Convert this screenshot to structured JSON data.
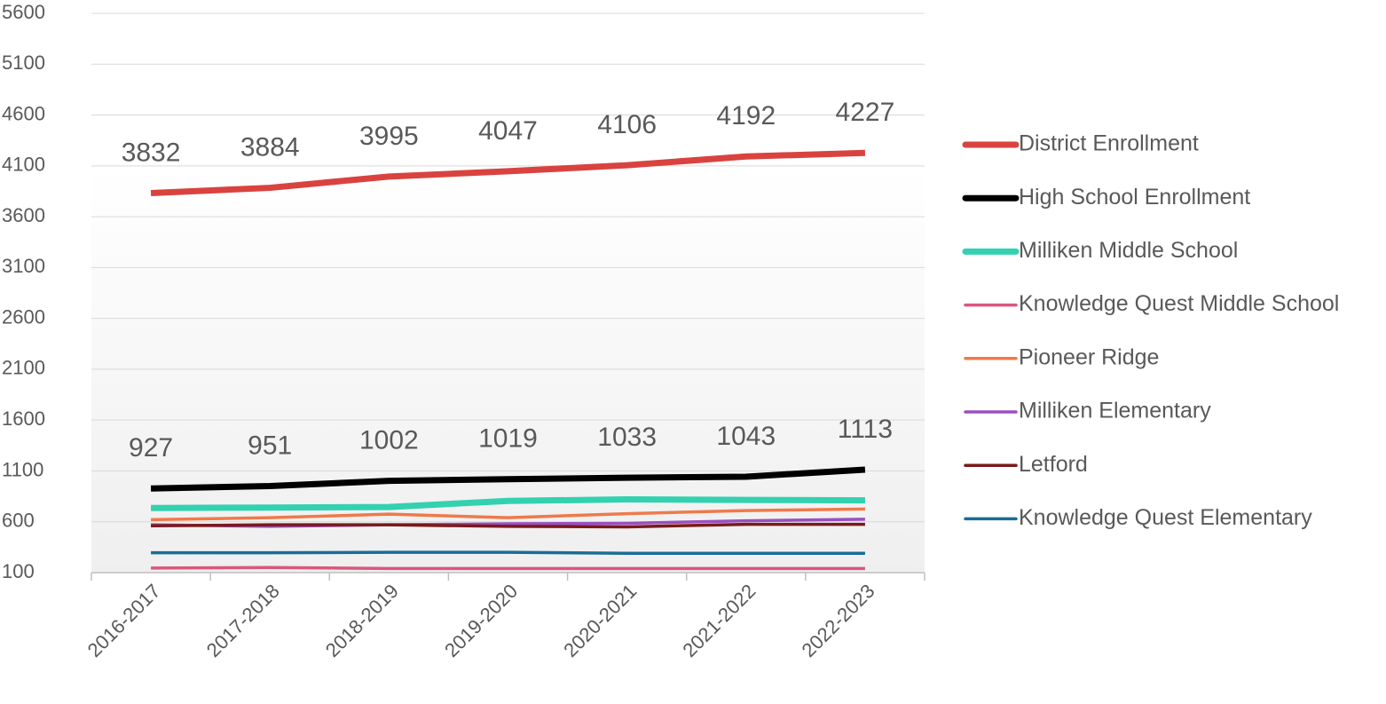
{
  "chart_data": {
    "type": "line",
    "categories": [
      "2016-2017",
      "2017-2018",
      "2018-2019",
      "2019-2020",
      "2020-2021",
      "2021-2022",
      "2022-2023"
    ],
    "series": [
      {
        "name": "District Enrollment",
        "color": "#d9433f",
        "width": 7,
        "values": [
          3832,
          3884,
          3995,
          4047,
          4106,
          4192,
          4227
        ],
        "labeled": true
      },
      {
        "name": "High School Enrollment",
        "color": "#000000",
        "width": 7,
        "values": [
          927,
          951,
          1002,
          1019,
          1033,
          1043,
          1113
        ],
        "labeled": true
      },
      {
        "name": "Milliken Middle School",
        "color": "#33d1b0",
        "width": 7,
        "values": [
          735,
          740,
          745,
          805,
          820,
          815,
          810
        ]
      },
      {
        "name": "Knowledge Quest Middle School",
        "color": "#d9577e",
        "width": 3.5,
        "values": [
          145,
          150,
          140,
          140,
          140,
          140,
          140
        ]
      },
      {
        "name": "Pioneer Ridge",
        "color": "#ef7a4a",
        "width": 3.5,
        "values": [
          620,
          640,
          675,
          640,
          680,
          710,
          725
        ]
      },
      {
        "name": "Milliken Elementary",
        "color": "#9b4fc0",
        "width": 3.5,
        "values": [
          570,
          555,
          570,
          580,
          585,
          610,
          625
        ]
      },
      {
        "name": "Letford",
        "color": "#7a1a1a",
        "width": 3.5,
        "values": [
          560,
          570,
          570,
          555,
          550,
          575,
          575
        ]
      },
      {
        "name": "Knowledge Quest Elementary",
        "color": "#1a6d96",
        "width": 3.5,
        "values": [
          295,
          295,
          300,
          300,
          290,
          290,
          290
        ]
      }
    ],
    "ylim": [
      100,
      5600
    ],
    "yticks": [
      100,
      600,
      1100,
      1600,
      2100,
      2600,
      3100,
      3600,
      4100,
      4600,
      5100,
      5600
    ],
    "grid": true,
    "legend": "right"
  }
}
